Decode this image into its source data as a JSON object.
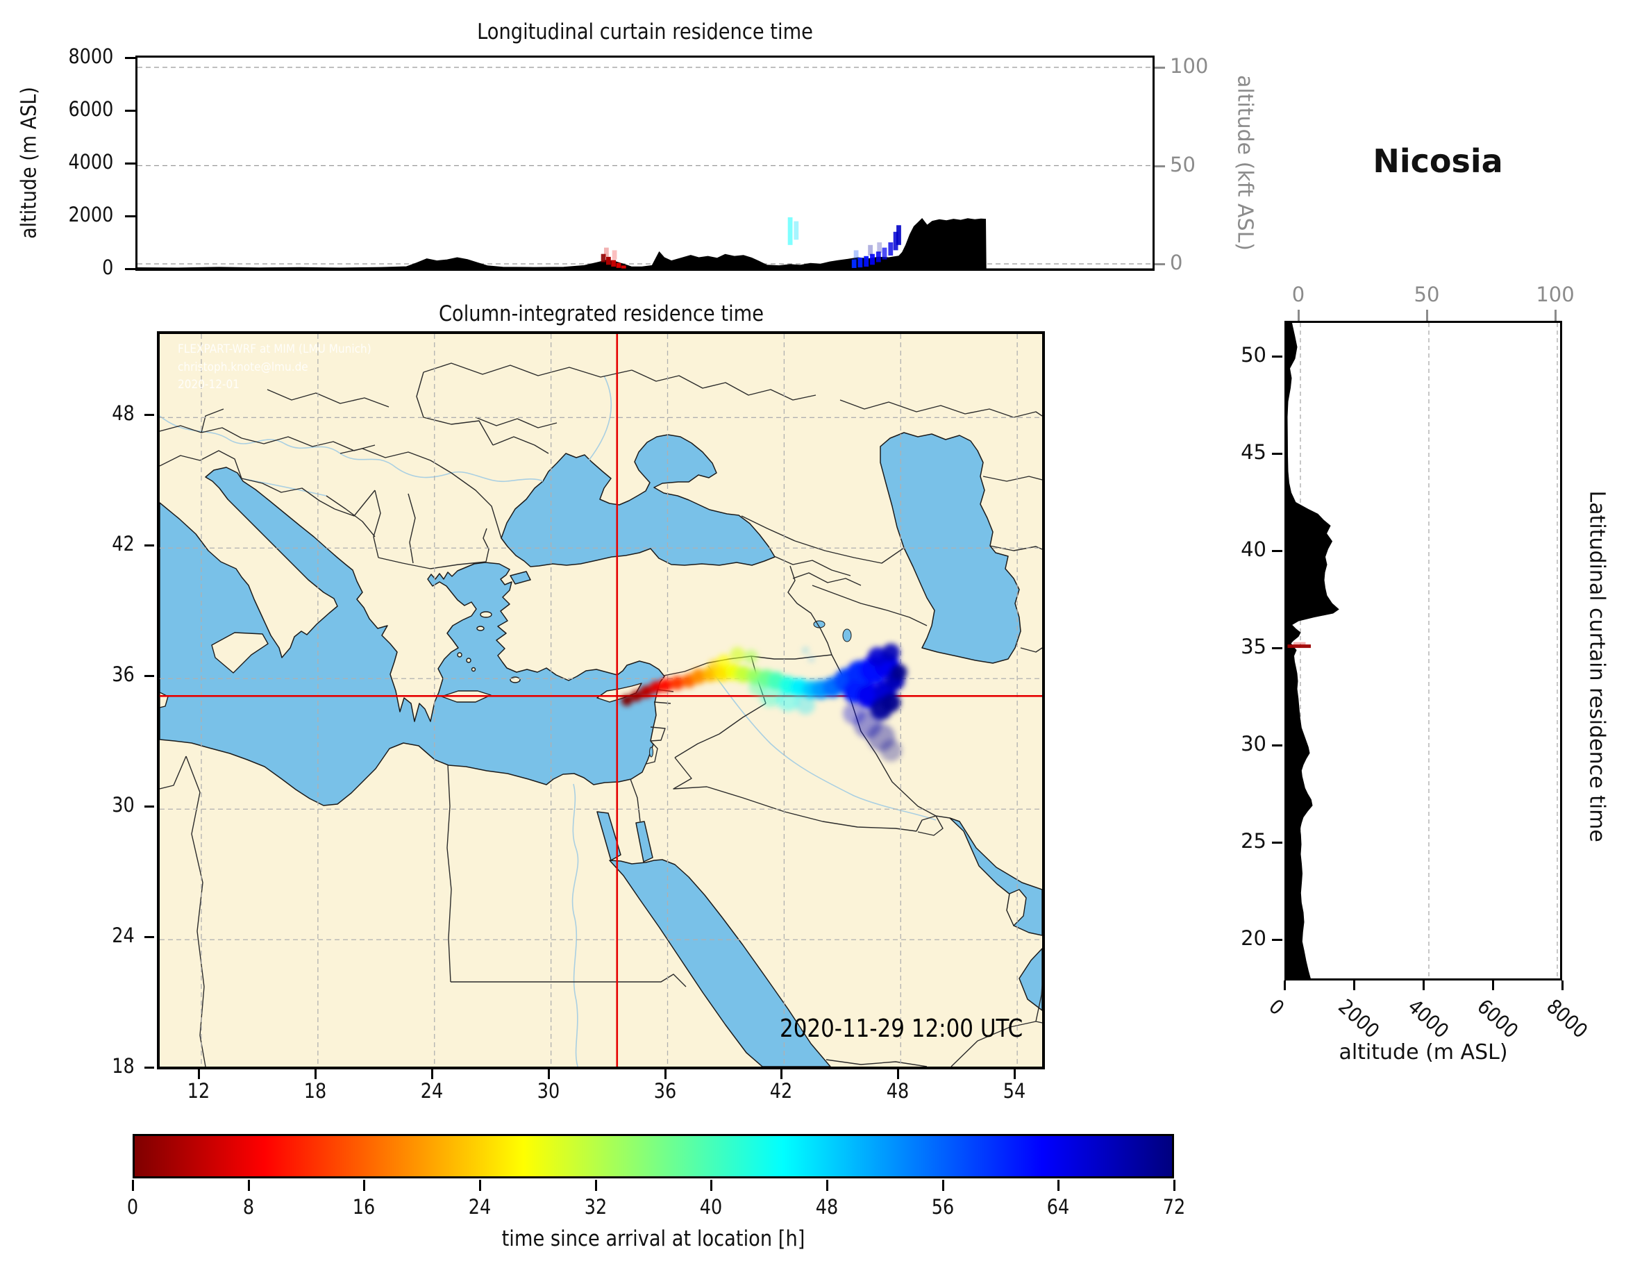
{
  "station": "Nicosia",
  "panels": {
    "longitudinal": {
      "title": "Longitudinal curtain residence time",
      "ylabel": "altitude (m ASL)",
      "ylabel_right": "altitude (kft ASL)",
      "yticks_left": [
        8000,
        6000,
        4000,
        2000,
        0
      ],
      "yticks_right": [
        100,
        50,
        0
      ]
    },
    "map": {
      "title": "Column-integrated residence time",
      "xticks": [
        12,
        18,
        24,
        30,
        36,
        42,
        48,
        54
      ],
      "yticks": [
        48,
        42,
        36,
        30,
        24,
        18
      ],
      "datetime": "2020-11-29 12:00 UTC",
      "watermark": [
        "FLEXPART-WRF at MIM (LMU Munich)",
        "christoph.knote@lmu.de",
        "2020-12-01"
      ]
    },
    "latitudinal": {
      "ylabel_right": "Latitudinal curtain residence time",
      "xlabel": "altitude (m ASL)",
      "xticks": [
        0,
        2000,
        4000,
        6000,
        8000
      ],
      "xticks_top": [
        0,
        50,
        100
      ],
      "yticks": [
        50,
        45,
        40,
        35,
        30,
        25,
        20
      ]
    },
    "colorbar": {
      "label": "time since arrival at location [h]",
      "ticks": [
        0,
        8,
        16,
        24,
        32,
        40,
        48,
        56,
        64,
        72
      ]
    }
  },
  "colors": {
    "sea": "#79C1E8",
    "land": "#FBF3D8",
    "coast": "#1b1b1b",
    "border": "#2a2a2a",
    "river": "#a9cfe2",
    "grid": "#b0b0b0",
    "crosshair": "#e60000",
    "terrain": "#000000",
    "secondary_axis": "#8b8b8b"
  },
  "chart_data": {
    "type": "heatmap",
    "units": {
      "time": "h",
      "altitude": "m ASL"
    },
    "time_range": [
      0,
      72
    ],
    "colormap": {
      "name": "jet_r",
      "stops": [
        [
          0,
          "#7F0000"
        ],
        [
          9,
          "#FF0000"
        ],
        [
          18,
          "#FF7F00"
        ],
        [
          27,
          "#FFFF00"
        ],
        [
          36,
          "#7FFF7F"
        ],
        [
          45,
          "#00FFFF"
        ],
        [
          54,
          "#007FFF"
        ],
        [
          63,
          "#0000FF"
        ],
        [
          72,
          "#00007F"
        ]
      ]
    },
    "site": {
      "name": "Nicosia",
      "lon": 33.4,
      "lat": 35.2
    },
    "map_extent": {
      "lon": [
        10.0,
        55.7
      ],
      "lat": [
        17.85,
        51.84
      ]
    },
    "plume": [
      [
        33.9,
        35.0,
        0,
        8,
        1
      ],
      [
        34.4,
        35.2,
        2,
        8,
        1
      ],
      [
        34.9,
        35.4,
        4,
        9,
        1
      ],
      [
        35.4,
        35.6,
        7,
        9,
        1
      ],
      [
        35.9,
        35.7,
        10,
        10,
        1
      ],
      [
        36.5,
        35.8,
        13,
        10,
        1
      ],
      [
        37.1,
        35.9,
        16,
        10,
        1
      ],
      [
        37.6,
        36.1,
        19,
        11,
        1
      ],
      [
        38.2,
        36.2,
        22,
        11,
        1
      ],
      [
        38.8,
        36.25,
        25,
        12,
        1
      ],
      [
        39.4,
        36.3,
        28,
        12,
        1
      ],
      [
        39.9,
        36.2,
        31,
        12,
        1
      ],
      [
        38.4,
        36.6,
        24,
        9,
        0.65
      ],
      [
        38.9,
        36.8,
        27,
        10,
        0.7
      ],
      [
        39.6,
        37.1,
        30,
        11,
        0.65
      ],
      [
        40.3,
        37.0,
        33,
        10,
        0.6
      ],
      [
        40.5,
        36.1,
        34,
        12,
        1
      ],
      [
        41.1,
        36.0,
        37,
        13,
        1
      ],
      [
        41.6,
        35.9,
        40,
        13,
        1
      ],
      [
        42.2,
        35.7,
        43,
        13,
        1
      ],
      [
        42.8,
        35.6,
        46,
        13,
        1
      ],
      [
        43.4,
        35.5,
        49,
        13,
        1
      ],
      [
        40.6,
        35.6,
        39,
        12,
        0.45
      ],
      [
        41.3,
        35.2,
        42,
        16,
        0.4
      ],
      [
        42.2,
        35.0,
        45,
        16,
        0.38
      ],
      [
        43.1,
        34.8,
        47,
        14,
        0.32
      ],
      [
        43.9,
        35.5,
        52,
        14,
        1
      ],
      [
        44.5,
        35.6,
        55,
        15,
        1
      ],
      [
        45.2,
        35.9,
        58,
        18,
        1
      ],
      [
        45.9,
        36.2,
        60,
        20,
        1
      ],
      [
        46.6,
        36.4,
        62,
        20,
        1
      ],
      [
        47.3,
        36.6,
        64,
        18,
        1
      ],
      [
        46.8,
        37.0,
        66,
        14,
        0.9
      ],
      [
        47.5,
        37.2,
        68,
        13,
        0.9
      ],
      [
        45.6,
        35.4,
        61,
        16,
        1
      ],
      [
        46.4,
        35.2,
        64,
        18,
        1
      ],
      [
        47.2,
        35.4,
        66,
        16,
        1
      ],
      [
        47.7,
        35.9,
        68,
        14,
        1
      ],
      [
        47.0,
        34.6,
        70,
        16,
        0.95
      ],
      [
        47.5,
        34.9,
        71,
        14,
        0.95
      ],
      [
        47.9,
        36.3,
        71,
        12,
        0.95
      ],
      [
        45.6,
        34.4,
        66,
        16,
        0.35
      ],
      [
        46.3,
        33.9,
        68,
        20,
        0.4
      ],
      [
        47.0,
        33.3,
        70,
        20,
        0.38
      ],
      [
        47.5,
        32.7,
        71,
        16,
        0.3
      ],
      [
        43.1,
        37.3,
        50,
        5,
        0.25
      ],
      [
        43.4,
        36.9,
        52,
        5,
        0.2
      ]
    ],
    "lon_curtain": {
      "terrain": [
        [
          0,
          40
        ],
        [
          0.04,
          30
        ],
        [
          0.08,
          55
        ],
        [
          0.12,
          35
        ],
        [
          0.16,
          45
        ],
        [
          0.2,
          30
        ],
        [
          0.24,
          50
        ],
        [
          0.265,
          80
        ],
        [
          0.275,
          220
        ],
        [
          0.285,
          380
        ],
        [
          0.295,
          300
        ],
        [
          0.305,
          340
        ],
        [
          0.315,
          420
        ],
        [
          0.325,
          350
        ],
        [
          0.335,
          230
        ],
        [
          0.345,
          110
        ],
        [
          0.36,
          60
        ],
        [
          0.39,
          50
        ],
        [
          0.42,
          60
        ],
        [
          0.44,
          120
        ],
        [
          0.452,
          230
        ],
        [
          0.462,
          320
        ],
        [
          0.47,
          280
        ],
        [
          0.478,
          190
        ],
        [
          0.487,
          70
        ],
        [
          0.497,
          70
        ],
        [
          0.507,
          120
        ],
        [
          0.514,
          640
        ],
        [
          0.519,
          420
        ],
        [
          0.526,
          300
        ],
        [
          0.535,
          400
        ],
        [
          0.545,
          510
        ],
        [
          0.553,
          420
        ],
        [
          0.562,
          470
        ],
        [
          0.571,
          400
        ],
        [
          0.579,
          545
        ],
        [
          0.588,
          470
        ],
        [
          0.597,
          505
        ],
        [
          0.605,
          410
        ],
        [
          0.612,
          290
        ],
        [
          0.62,
          140
        ],
        [
          0.632,
          115
        ],
        [
          0.643,
          160
        ],
        [
          0.653,
          135
        ],
        [
          0.663,
          205
        ],
        [
          0.673,
          180
        ],
        [
          0.682,
          260
        ],
        [
          0.69,
          310
        ],
        [
          0.7,
          360
        ],
        [
          0.71,
          420
        ],
        [
          0.72,
          380
        ],
        [
          0.73,
          440
        ],
        [
          0.74,
          420
        ],
        [
          0.75,
          480
        ],
        [
          0.7535,
          620
        ],
        [
          0.757,
          900
        ],
        [
          0.761,
          1300
        ],
        [
          0.765,
          1600
        ],
        [
          0.769,
          1750
        ],
        [
          0.773,
          1900
        ],
        [
          0.778,
          1650
        ],
        [
          0.783,
          1800
        ],
        [
          0.79,
          1860
        ],
        [
          0.797,
          1820
        ],
        [
          0.804,
          1880
        ],
        [
          0.811,
          1840
        ],
        [
          0.818,
          1900
        ],
        [
          0.825,
          1860
        ],
        [
          0.831,
          1890
        ],
        [
          0.8355,
          1880
        ],
        [
          0.836,
          0
        ],
        [
          1,
          0
        ]
      ],
      "cells": [
        {
          "x": 0.459,
          "alt": [
            250,
            560
          ],
          "t": 1,
          "o": 0.9
        },
        {
          "x": 0.464,
          "alt": [
            150,
            450
          ],
          "t": 3,
          "o": 1
        },
        {
          "x": 0.469,
          "alt": [
            80,
            330
          ],
          "t": 5,
          "o": 1
        },
        {
          "x": 0.474,
          "alt": [
            30,
            220
          ],
          "t": 7,
          "o": 0.95
        },
        {
          "x": 0.479,
          "alt": [
            10,
            120
          ],
          "t": 9,
          "o": 0.85
        },
        {
          "x": 0.462,
          "alt": [
            450,
            800
          ],
          "t": 6,
          "o": 0.3
        },
        {
          "x": 0.47,
          "alt": [
            350,
            700
          ],
          "t": 8,
          "o": 0.25
        },
        {
          "x": 0.643,
          "alt": [
            900,
            1950
          ],
          "t": 45,
          "o": 0.5
        },
        {
          "x": 0.649,
          "alt": [
            1100,
            1800
          ],
          "t": 47,
          "o": 0.35
        },
        {
          "x": 0.706,
          "alt": [
            30,
            350
          ],
          "t": 60,
          "o": 1
        },
        {
          "x": 0.712,
          "alt": [
            50,
            420
          ],
          "t": 61,
          "o": 1
        },
        {
          "x": 0.718,
          "alt": [
            80,
            480
          ],
          "t": 62,
          "o": 0.95
        },
        {
          "x": 0.724,
          "alt": [
            150,
            560
          ],
          "t": 63,
          "o": 0.9
        },
        {
          "x": 0.73,
          "alt": [
            250,
            650
          ],
          "t": 64,
          "o": 0.85
        },
        {
          "x": 0.736,
          "alt": [
            350,
            800
          ],
          "t": 64,
          "o": 0.7
        },
        {
          "x": 0.742,
          "alt": [
            500,
            1000
          ],
          "t": 65,
          "o": 0.8
        },
        {
          "x": 0.747,
          "alt": [
            700,
            1400
          ],
          "t": 66,
          "o": 0.85
        },
        {
          "x": 0.75,
          "alt": [
            900,
            1650
          ],
          "t": 67,
          "o": 0.9
        },
        {
          "x": 0.708,
          "alt": [
            350,
            700
          ],
          "t": 58,
          "o": 0.3
        },
        {
          "x": 0.722,
          "alt": [
            500,
            900
          ],
          "t": 70,
          "o": 0.3
        },
        {
          "x": 0.731,
          "alt": [
            600,
            1000
          ],
          "t": 70,
          "o": 0.25
        }
      ]
    },
    "lat_curtain": {
      "terrain": [
        [
          51.84,
          150
        ],
        [
          51.2,
          230
        ],
        [
          50.6,
          300
        ],
        [
          50,
          240
        ],
        [
          49.5,
          90
        ],
        [
          49,
          140
        ],
        [
          48.5,
          110
        ],
        [
          47.8,
          40
        ],
        [
          47,
          20
        ],
        [
          46,
          25
        ],
        [
          45,
          30
        ],
        [
          44.2,
          40
        ],
        [
          43.6,
          70
        ],
        [
          43.1,
          130
        ],
        [
          42.6,
          260
        ],
        [
          42.25,
          620
        ],
        [
          42,
          900
        ],
        [
          41.7,
          1060
        ],
        [
          41.4,
          1260
        ],
        [
          41,
          1150
        ],
        [
          40.6,
          1310
        ],
        [
          40.2,
          1190
        ],
        [
          39.8,
          1110
        ],
        [
          39.4,
          1160
        ],
        [
          39,
          1100
        ],
        [
          38.6,
          1080
        ],
        [
          38.2,
          1110
        ],
        [
          37.8,
          1160
        ],
        [
          37.4,
          1310
        ],
        [
          37.1,
          1500
        ],
        [
          36.9,
          1340
        ],
        [
          36.7,
          790
        ],
        [
          36.5,
          340
        ],
        [
          36.3,
          150
        ],
        [
          36.1,
          260
        ],
        [
          35.9,
          400
        ],
        [
          35.7,
          340
        ],
        [
          35.5,
          200
        ],
        [
          35.35,
          120
        ],
        [
          35.2,
          180
        ],
        [
          35,
          280
        ],
        [
          34.7,
          210
        ],
        [
          34.4,
          230
        ],
        [
          34.1,
          265
        ],
        [
          33.8,
          300
        ],
        [
          33.4,
          320
        ],
        [
          33,
          300
        ],
        [
          32.5,
          335
        ],
        [
          32,
          360
        ],
        [
          31.5,
          385
        ],
        [
          31,
          425
        ],
        [
          30.6,
          505
        ],
        [
          30.3,
          565
        ],
        [
          30,
          625
        ],
        [
          29.7,
          660
        ],
        [
          29.4,
          560
        ],
        [
          29.1,
          480
        ],
        [
          28.8,
          425
        ],
        [
          28.5,
          445
        ],
        [
          28.2,
          485
        ],
        [
          27.9,
          525
        ],
        [
          27.6,
          605
        ],
        [
          27.3,
          705
        ],
        [
          27,
          740
        ],
        [
          26.7,
          600
        ],
        [
          26.4,
          480
        ],
        [
          26.1,
          425
        ],
        [
          25.8,
          385
        ],
        [
          25.5,
          405
        ],
        [
          25,
          420
        ],
        [
          24.5,
          400
        ],
        [
          24,
          430
        ],
        [
          23.5,
          450
        ],
        [
          23,
          430
        ],
        [
          22.5,
          405
        ],
        [
          22,
          425
        ],
        [
          21.5,
          480
        ],
        [
          21,
          500
        ],
        [
          20.5,
          465
        ],
        [
          20,
          445
        ],
        [
          19.5,
          505
        ],
        [
          19,
          560
        ],
        [
          18.5,
          625
        ],
        [
          18.1,
          685
        ],
        [
          17.85,
          700
        ]
      ],
      "cells": [
        {
          "lat": 35.2,
          "alt": [
            30,
            700
          ],
          "t": 2,
          "o": 0.95
        },
        {
          "lat": 35.32,
          "alt": [
            200,
            550
          ],
          "t": 6,
          "o": 0.3
        }
      ]
    }
  }
}
